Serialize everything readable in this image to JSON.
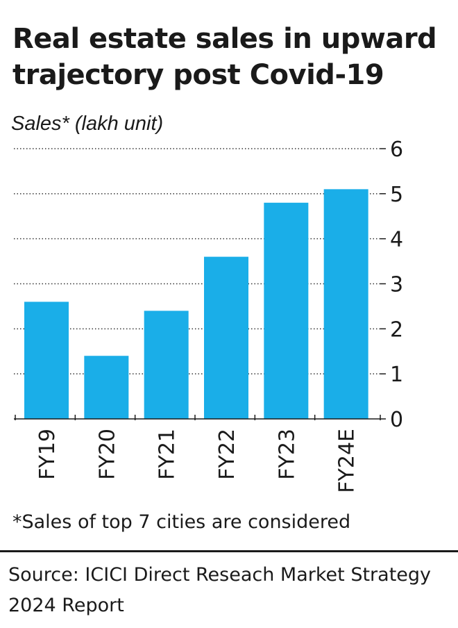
{
  "header": {
    "title": "Real estate sales in upward trajectory post Covid-19",
    "ylabel": "Sales* (lakh unit)"
  },
  "footer": {
    "footnote": "*Sales of top 7 cities are considered",
    "source": "Source: ICICI Direct Reseach Market Strategy 2024 Report"
  },
  "colors": {
    "bar": "#1AAEE8",
    "text": "#1a1a1a",
    "grid": "#333333"
  },
  "chart_data": {
    "type": "bar",
    "title": "Real estate sales in upward trajectory post Covid-19",
    "ylabel": "Sales* (lakh unit)",
    "xlabel": "",
    "categories": [
      "FY19",
      "FY20",
      "FY21",
      "FY22",
      "FY23",
      "FY24E"
    ],
    "values": [
      2.6,
      1.4,
      2.4,
      3.6,
      4.8,
      5.1
    ],
    "ylim": [
      0,
      6
    ],
    "yticks": [
      "0",
      "1",
      "2",
      "3",
      "4",
      "5",
      "6"
    ],
    "y_axis_side": "right",
    "grid": "horizontal-dotted"
  }
}
